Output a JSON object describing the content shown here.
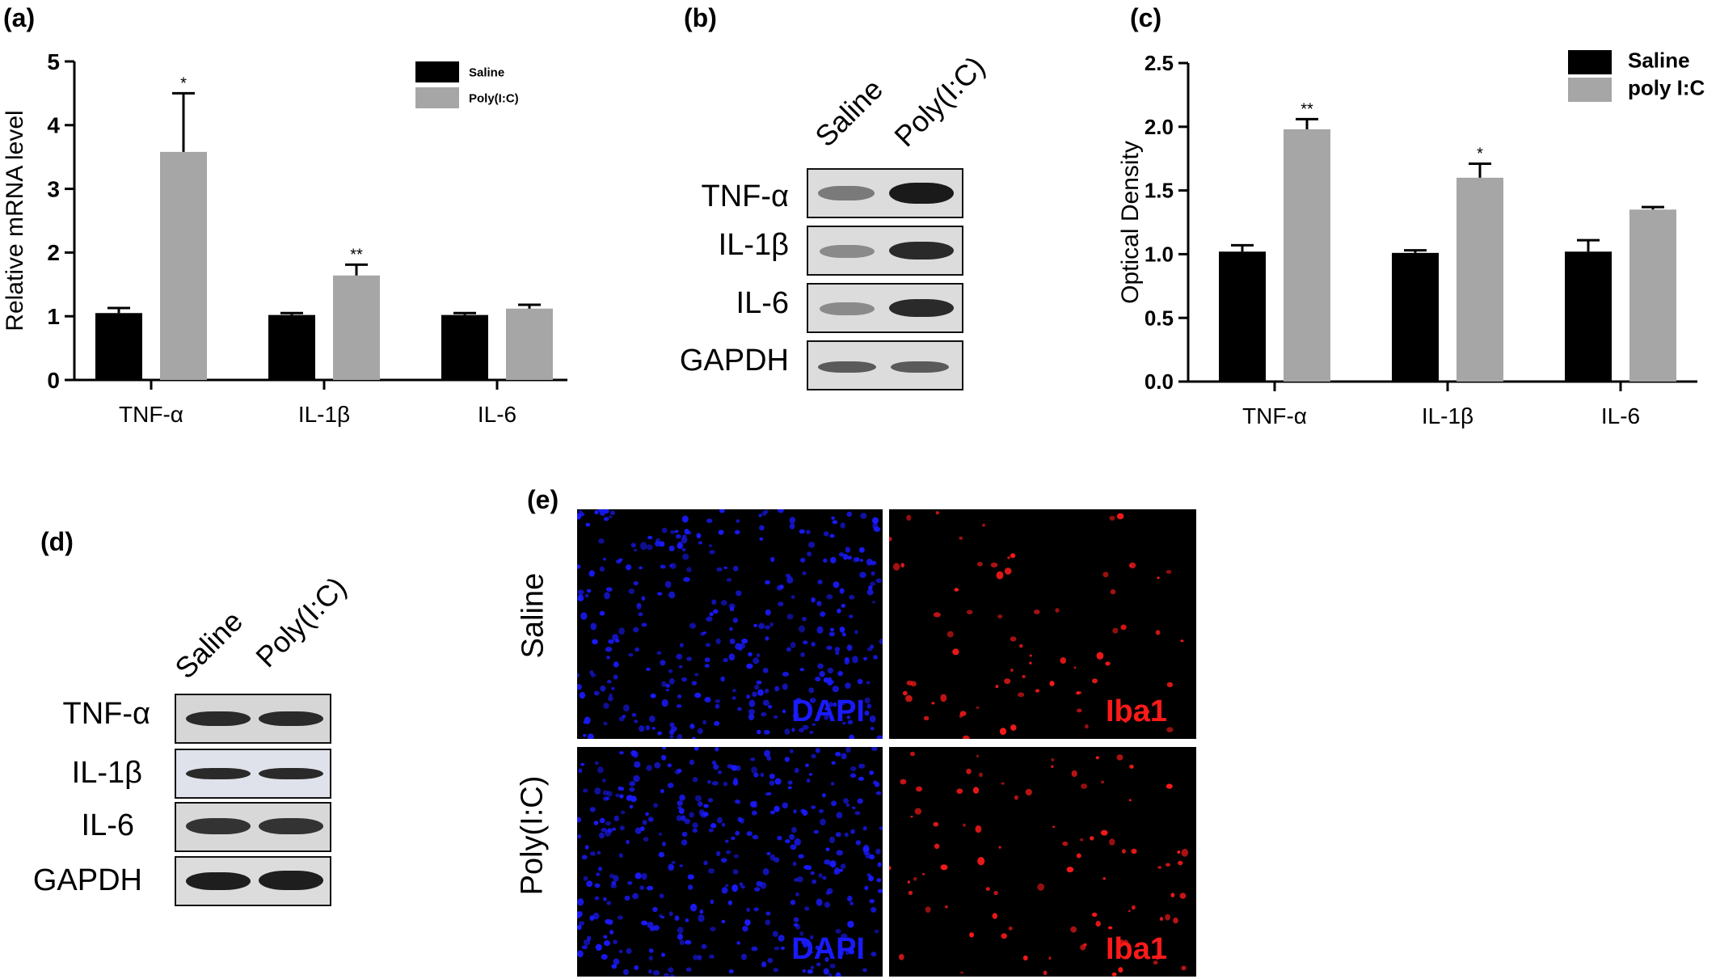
{
  "panels": {
    "a": "(a)",
    "b": "(b)",
    "c": "(c)",
    "d": "(d)",
    "e": "(e)"
  },
  "chart_data": [
    {
      "type": "bar",
      "panel": "a",
      "categories": [
        "TNF-α",
        "IL-1β",
        "IL-6"
      ],
      "series": [
        {
          "name": "Saline",
          "color": "#000000",
          "values": [
            1.05,
            1.02,
            1.02
          ],
          "errors": [
            0.08,
            0.03,
            0.03
          ]
        },
        {
          "name": "Poly(I:C)",
          "color": "#a6a6a6",
          "values": [
            3.58,
            1.64,
            1.12
          ],
          "errors": [
            0.92,
            0.17,
            0.06
          ]
        }
      ],
      "significance": [
        "*",
        "**",
        ""
      ],
      "ylabel": "Relative mRNA level",
      "ylim": [
        0,
        5
      ],
      "yticks": [
        "0",
        "1",
        "2",
        "3",
        "4",
        "5"
      ],
      "legend": "top-right",
      "grid": false
    },
    {
      "type": "bar",
      "panel": "c",
      "categories": [
        "TNF-α",
        "IL-1β",
        "IL-6"
      ],
      "series": [
        {
          "name": "Saline",
          "color": "#000000",
          "values": [
            1.02,
            1.01,
            1.02
          ],
          "errors": [
            0.05,
            0.02,
            0.09
          ]
        },
        {
          "name": "poly I:C",
          "color": "#a6a6a6",
          "values": [
            1.98,
            1.6,
            1.35
          ],
          "errors": [
            0.08,
            0.11,
            0.02
          ]
        }
      ],
      "significance": [
        "**",
        "*",
        ""
      ],
      "ylabel": "Optical Density",
      "ylim": [
        0,
        2.5
      ],
      "yticks": [
        "0.0",
        "0.5",
        "1.0",
        "1.5",
        "2.0",
        "2.5"
      ],
      "legend": "top-right",
      "grid": false
    }
  ],
  "blot_b": {
    "lanes": [
      "Saline",
      "Poly(I:C)"
    ],
    "rows": [
      "TNF-α",
      "IL-1β",
      "IL-6",
      "GAPDH"
    ]
  },
  "blot_d": {
    "lanes": [
      "Saline",
      "Poly(I:C)"
    ],
    "rows": [
      "TNF-α",
      "IL-1β",
      "IL-6",
      "GAPDH"
    ]
  },
  "micro_e": {
    "rows": [
      "Saline",
      "Poly(I:C)"
    ],
    "channels": [
      {
        "name": "DAPI",
        "color": "#1a1aff"
      },
      {
        "name": "Iba1",
        "color": "#ff1a1a"
      }
    ]
  }
}
